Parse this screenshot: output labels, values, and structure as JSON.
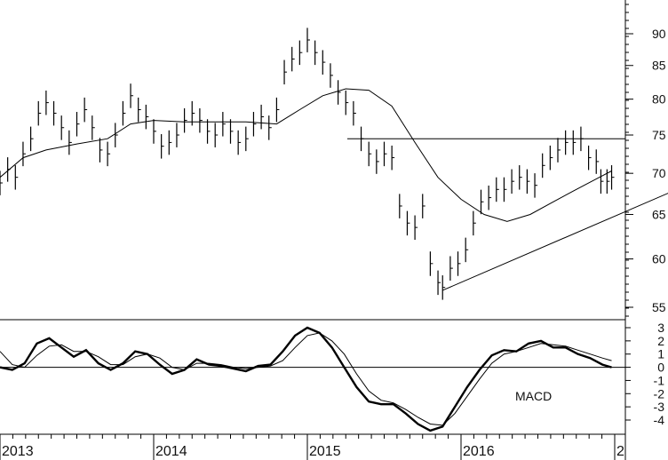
{
  "chart_data": [
    {
      "type": "line",
      "panel": "price",
      "style": "ohlc-bars",
      "title": "",
      "xlabel": "",
      "ylabel": "",
      "x_ticks": [
        "2013",
        "2014",
        "2015",
        "2016",
        "2"
      ],
      "y_ticks": [
        55,
        60,
        65,
        70,
        75,
        80,
        85,
        90
      ],
      "ylim": [
        52,
        98
      ],
      "log_scale": true,
      "grid": false,
      "colors": {
        "line": "#000000",
        "background": "#ffffff"
      },
      "price_bars": [
        {
          "t": 2013.0,
          "v": 68.8
        },
        {
          "t": 2013.05,
          "v": 70.5
        },
        {
          "t": 2013.1,
          "v": 69.5
        },
        {
          "t": 2013.15,
          "v": 72.5
        },
        {
          "t": 2013.2,
          "v": 74.5
        },
        {
          "t": 2013.25,
          "v": 78.0
        },
        {
          "t": 2013.3,
          "v": 79.5
        },
        {
          "t": 2013.35,
          "v": 78.0
        },
        {
          "t": 2013.4,
          "v": 76.0
        },
        {
          "t": 2013.45,
          "v": 74.0
        },
        {
          "t": 2013.5,
          "v": 76.5
        },
        {
          "t": 2013.55,
          "v": 78.5
        },
        {
          "t": 2013.6,
          "v": 76.0
        },
        {
          "t": 2013.65,
          "v": 73.0
        },
        {
          "t": 2013.7,
          "v": 72.5
        },
        {
          "t": 2013.75,
          "v": 75.0
        },
        {
          "t": 2013.8,
          "v": 78.0
        },
        {
          "t": 2013.85,
          "v": 80.5
        },
        {
          "t": 2013.9,
          "v": 78.5
        },
        {
          "t": 2013.95,
          "v": 77.5
        },
        {
          "t": 2014.0,
          "v": 75.5
        },
        {
          "t": 2014.05,
          "v": 73.5
        },
        {
          "t": 2014.1,
          "v": 74.0
        },
        {
          "t": 2014.15,
          "v": 75.0
        },
        {
          "t": 2014.2,
          "v": 77.0
        },
        {
          "t": 2014.25,
          "v": 78.0
        },
        {
          "t": 2014.3,
          "v": 77.0
        },
        {
          "t": 2014.35,
          "v": 75.5
        },
        {
          "t": 2014.4,
          "v": 75.0
        },
        {
          "t": 2014.45,
          "v": 76.5
        },
        {
          "t": 2014.5,
          "v": 75.5
        },
        {
          "t": 2014.55,
          "v": 74.0
        },
        {
          "t": 2014.6,
          "v": 74.5
        },
        {
          "t": 2014.65,
          "v": 76.5
        },
        {
          "t": 2014.7,
          "v": 77.5
        },
        {
          "t": 2014.75,
          "v": 76.0
        },
        {
          "t": 2014.8,
          "v": 78.5
        },
        {
          "t": 2014.85,
          "v": 84.0
        },
        {
          "t": 2014.9,
          "v": 86.0
        },
        {
          "t": 2014.95,
          "v": 87.0
        },
        {
          "t": 2015.0,
          "v": 89.0
        },
        {
          "t": 2015.05,
          "v": 87.0
        },
        {
          "t": 2015.1,
          "v": 85.5
        },
        {
          "t": 2015.15,
          "v": 83.5
        },
        {
          "t": 2015.2,
          "v": 81.0
        },
        {
          "t": 2015.25,
          "v": 79.5
        },
        {
          "t": 2015.3,
          "v": 78.0
        },
        {
          "t": 2015.35,
          "v": 74.5
        },
        {
          "t": 2015.4,
          "v": 72.5
        },
        {
          "t": 2015.45,
          "v": 71.5
        },
        {
          "t": 2015.5,
          "v": 72.5
        },
        {
          "t": 2015.55,
          "v": 72.0
        },
        {
          "t": 2015.6,
          "v": 66.0
        },
        {
          "t": 2015.65,
          "v": 64.0
        },
        {
          "t": 2015.7,
          "v": 63.5
        },
        {
          "t": 2015.75,
          "v": 66.0
        },
        {
          "t": 2015.8,
          "v": 59.5
        },
        {
          "t": 2015.85,
          "v": 57.5
        },
        {
          "t": 2015.88,
          "v": 57.0
        },
        {
          "t": 2015.93,
          "v": 59.0
        },
        {
          "t": 2015.98,
          "v": 59.5
        },
        {
          "t": 2016.03,
          "v": 61.0
        },
        {
          "t": 2016.08,
          "v": 64.0
        },
        {
          "t": 2016.13,
          "v": 66.5
        },
        {
          "t": 2016.18,
          "v": 67.0
        },
        {
          "t": 2016.23,
          "v": 68.0
        },
        {
          "t": 2016.28,
          "v": 68.0
        },
        {
          "t": 2016.33,
          "v": 69.0
        },
        {
          "t": 2016.38,
          "v": 69.5
        },
        {
          "t": 2016.43,
          "v": 69.0
        },
        {
          "t": 2016.48,
          "v": 68.5
        },
        {
          "t": 2016.53,
          "v": 71.0
        },
        {
          "t": 2016.58,
          "v": 72.0
        },
        {
          "t": 2016.63,
          "v": 73.0
        },
        {
          "t": 2016.68,
          "v": 74.0
        },
        {
          "t": 2016.73,
          "v": 74.0
        },
        {
          "t": 2016.78,
          "v": 74.5
        },
        {
          "t": 2016.83,
          "v": 72.0
        },
        {
          "t": 2016.88,
          "v": 71.5
        },
        {
          "t": 2016.91,
          "v": 69.0
        },
        {
          "t": 2016.95,
          "v": 69.0
        },
        {
          "t": 2016.98,
          "v": 69.5
        }
      ],
      "moving_average": [
        {
          "t": 2013.0,
          "v": 69.5
        },
        {
          "t": 2013.15,
          "v": 72.0
        },
        {
          "t": 2013.3,
          "v": 73.0
        },
        {
          "t": 2013.5,
          "v": 73.8
        },
        {
          "t": 2013.7,
          "v": 74.5
        },
        {
          "t": 2013.85,
          "v": 76.5
        },
        {
          "t": 2014.0,
          "v": 77.0
        },
        {
          "t": 2014.2,
          "v": 76.8
        },
        {
          "t": 2014.4,
          "v": 76.8
        },
        {
          "t": 2014.6,
          "v": 76.8
        },
        {
          "t": 2014.8,
          "v": 76.5
        },
        {
          "t": 2014.95,
          "v": 78.5
        },
        {
          "t": 2015.1,
          "v": 80.5
        },
        {
          "t": 2015.25,
          "v": 81.5
        },
        {
          "t": 2015.4,
          "v": 81.3
        },
        {
          "t": 2015.55,
          "v": 79.0
        },
        {
          "t": 2015.7,
          "v": 74.0
        },
        {
          "t": 2015.85,
          "v": 69.5
        },
        {
          "t": 2016.0,
          "v": 66.8
        },
        {
          "t": 2016.15,
          "v": 65.0
        },
        {
          "t": 2016.3,
          "v": 64.2
        },
        {
          "t": 2016.45,
          "v": 65.0
        },
        {
          "t": 2016.6,
          "v": 66.5
        },
        {
          "t": 2016.75,
          "v": 68.0
        },
        {
          "t": 2016.9,
          "v": 69.5
        },
        {
          "t": 2016.98,
          "v": 70.3
        }
      ],
      "horizontal_line": {
        "v": 74.5,
        "from": 2015.26,
        "to": 2018.0
      },
      "trend_line": {
        "from": {
          "t": 2015.88,
          "v": 56.7
        },
        "to": {
          "t": 2018.0,
          "v": 73.0
        }
      }
    },
    {
      "type": "line",
      "panel": "macd",
      "title": "MACD",
      "xlabel": "",
      "ylabel": "",
      "y_ticks": [
        3,
        2,
        1,
        0,
        -1,
        -2,
        -3,
        -4
      ],
      "ylim": [
        -5.0,
        4.0
      ],
      "zero_line": true,
      "grid": false,
      "series": [
        {
          "x": [
            2013.0,
            2013.08,
            2013.16,
            2013.24,
            2013.32,
            2013.4,
            2013.48,
            2013.56,
            2013.64,
            2013.72,
            2013.8,
            2013.88,
            2013.96,
            2014.04,
            2014.12,
            2014.2,
            2014.28,
            2014.36,
            2014.44,
            2014.52,
            2014.6,
            2014.68,
            2014.76,
            2014.84,
            2014.92,
            2015.0,
            2015.08,
            2015.16,
            2015.24,
            2015.32,
            2015.4,
            2015.48,
            2015.56,
            2015.64,
            2015.72,
            2015.8,
            2015.88,
            2015.96,
            2016.04,
            2016.12,
            2016.2,
            2016.28,
            2016.36,
            2016.44,
            2016.52,
            2016.6,
            2016.68,
            2016.76,
            2016.84,
            2016.92,
            2016.98
          ],
          "values": [
            0,
            -0.2,
            0.3,
            1.8,
            2.2,
            1.5,
            0.8,
            1.3,
            0.3,
            -0.2,
            0.3,
            1.2,
            1.0,
            0.2,
            -0.5,
            -0.2,
            0.6,
            0.2,
            0.1,
            -0.1,
            -0.3,
            0.1,
            0.2,
            1.2,
            2.4,
            3.0,
            2.6,
            1.5,
            0.0,
            -1.5,
            -2.6,
            -2.8,
            -2.8,
            -3.5,
            -4.3,
            -4.8,
            -4.5,
            -3.0,
            -1.5,
            -0.2,
            0.9,
            1.3,
            1.2,
            1.8,
            2.0,
            1.5,
            1.5,
            1.0,
            0.7,
            0.2,
            0
          ]
        },
        {
          "x": [
            2013.0,
            2013.08,
            2013.16,
            2013.24,
            2013.32,
            2013.4,
            2013.48,
            2013.56,
            2013.64,
            2013.72,
            2013.8,
            2013.88,
            2013.96,
            2014.04,
            2014.12,
            2014.2,
            2014.28,
            2014.36,
            2014.44,
            2014.52,
            2014.6,
            2014.68,
            2014.76,
            2014.84,
            2014.92,
            2015.0,
            2015.08,
            2015.16,
            2015.24,
            2015.32,
            2015.4,
            2015.48,
            2015.56,
            2015.64,
            2015.72,
            2015.8,
            2015.88,
            2015.96,
            2016.04,
            2016.12,
            2016.2,
            2016.28,
            2016.36,
            2016.44,
            2016.52,
            2016.6,
            2016.68,
            2016.76,
            2016.84,
            2016.92,
            2016.98
          ],
          "values": [
            1.2,
            0.2,
            0.0,
            0.9,
            1.6,
            1.7,
            1.2,
            1.2,
            0.8,
            0.2,
            0.2,
            0.8,
            1.0,
            0.7,
            0.0,
            -0.2,
            0.3,
            0.3,
            0.2,
            0.0,
            -0.1,
            0.0,
            0.1,
            0.5,
            1.5,
            2.4,
            2.6,
            2.0,
            1.0,
            -0.5,
            -1.8,
            -2.5,
            -2.7,
            -3.2,
            -3.8,
            -4.3,
            -4.4,
            -3.5,
            -2.2,
            -0.9,
            0.3,
            1.0,
            1.2,
            1.5,
            1.8,
            1.7,
            1.6,
            1.3,
            1.0,
            0.7,
            0.5
          ]
        }
      ]
    }
  ]
}
